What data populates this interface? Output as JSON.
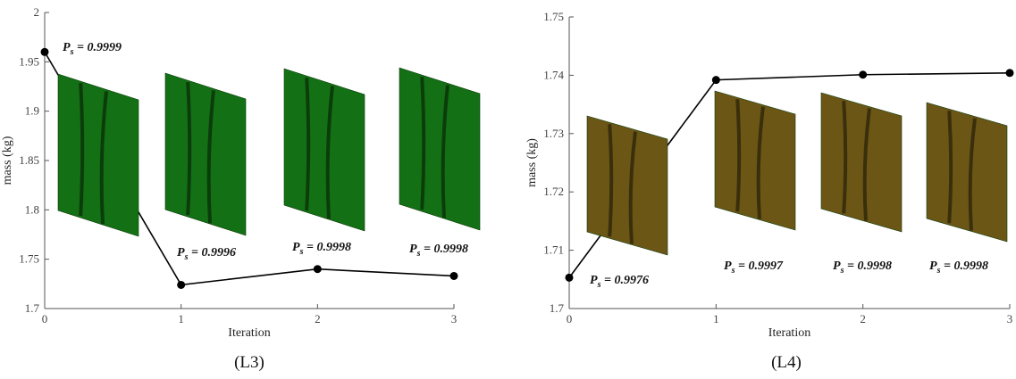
{
  "chart_data": [
    {
      "type": "line",
      "caption": "(L3)",
      "xlabel": "Iteration",
      "ylabel": "mass (kg)",
      "x": [
        0,
        1,
        2,
        3
      ],
      "values": [
        1.96,
        1.724,
        1.74,
        1.733
      ],
      "color": "#000000",
      "panel_color": "#147014",
      "xlim": [
        0,
        3
      ],
      "xticks": [
        0,
        1,
        2,
        3
      ],
      "ylim": [
        1.7,
        2
      ],
      "yticks": [
        1.7,
        1.75,
        1.8,
        1.85,
        1.9,
        1.95,
        2
      ],
      "annotations": [
        {
          "symbol": "P",
          "subscript": "s",
          "text": " = 0.9999"
        },
        {
          "symbol": "P",
          "subscript": "s",
          "text": " = 0.9996"
        },
        {
          "symbol": "P",
          "subscript": "s",
          "text": " = 0.9998"
        },
        {
          "symbol": "P",
          "subscript": "s",
          "text": " = 0.9998"
        }
      ]
    },
    {
      "type": "line",
      "caption": "(L4)",
      "xlabel": "Iteration",
      "ylabel": "mass (kg)",
      "x": [
        0,
        1,
        2,
        3
      ],
      "values": [
        1.7053,
        1.7392,
        1.7401,
        1.7404
      ],
      "color": "#000000",
      "panel_color": "#6b5616",
      "xlim": [
        0,
        3
      ],
      "xticks": [
        0,
        1,
        2,
        3
      ],
      "ylim": [
        1.7,
        1.75
      ],
      "yticks": [
        1.7,
        1.71,
        1.72,
        1.73,
        1.74,
        1.75
      ],
      "annotations": [
        {
          "symbol": "P",
          "subscript": "s",
          "text": " = 0.9976"
        },
        {
          "symbol": "P",
          "subscript": "s",
          "text": " = 0.9997"
        },
        {
          "symbol": "P",
          "subscript": "s",
          "text": " = 0.9998"
        },
        {
          "symbol": "P",
          "subscript": "s",
          "text": " = 0.9998"
        }
      ]
    }
  ]
}
